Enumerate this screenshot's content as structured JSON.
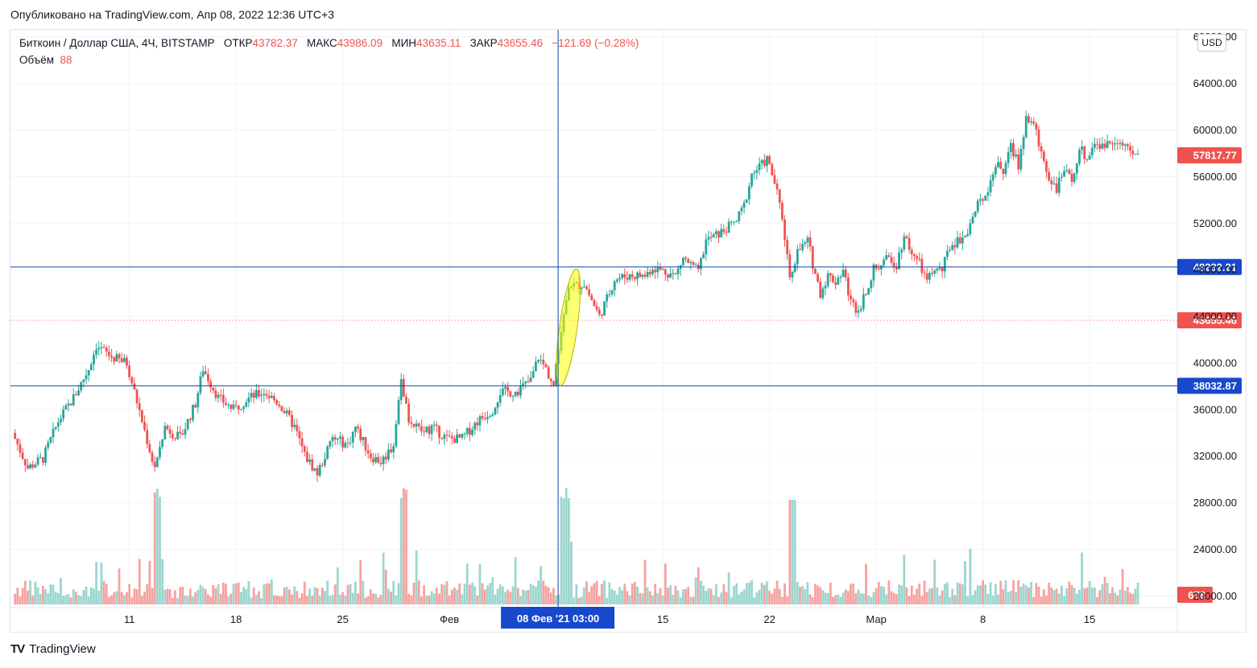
{
  "header": {
    "published": "Опубликовано на TradingView.com, Апр 08, 2022 12:36 UTC+3"
  },
  "legend": {
    "symbol": "Биткоин / Доллар США, 4Ч, BITSTAMP",
    "open_label": "ОТКР",
    "open": "43782.37",
    "high_label": "МАКС",
    "high": "43986.09",
    "low_label": "МИН",
    "low": "43635.11",
    "close_label": "ЗАКР",
    "close": "43655.46",
    "change": "−121.69 (−0.28%)",
    "volume_label": "Объём",
    "volume": "88"
  },
  "currency": "USD",
  "footer": {
    "logo": "TV",
    "brand": "TradingView"
  },
  "colors": {
    "up": "#26a69a",
    "down": "#ef5350",
    "line": "#0d47a1",
    "label_blue": "#1e53e5",
    "highlight": "#ffff00"
  },
  "chart_data": {
    "type": "candlestick",
    "y_ticks": [
      "68000.00",
      "64000.00",
      "60000.00",
      "56000.00",
      "52000.00",
      "48000.00",
      "44000.00",
      "40000.00",
      "36000.00",
      "32000.00",
      "28000.00",
      "24000.00",
      "20000.00"
    ],
    "y_tick_values": [
      68000,
      64000,
      60000,
      56000,
      52000,
      48000,
      44000,
      40000,
      36000,
      32000,
      28000,
      24000,
      20000
    ],
    "ylim": [
      19200,
      68600
    ],
    "x_ticks": [
      "11",
      "18",
      "25",
      "Фев",
      "15",
      "22",
      "Мар",
      "8",
      "15"
    ],
    "x_tick_days": [
      11,
      18,
      25,
      32,
      46,
      53,
      60,
      67,
      74
    ],
    "xlim_days": [
      3.2,
      79.7
    ],
    "horizontal_lines": [
      {
        "value": 48232.21,
        "label": "48232.21",
        "color": "#0d47a1"
      },
      {
        "value": 38032.87,
        "label": "38032.87",
        "color": "#0d47a1"
      }
    ],
    "last_price": {
      "value": 43655.46,
      "label": "43655.46"
    },
    "current_price": {
      "value": 57817.77,
      "label": "57817.77"
    },
    "volume_last": {
      "value": 678,
      "label": "678"
    },
    "crosshair": {
      "day": 39.13,
      "label": "08 Фев '21   03:00"
    },
    "highlight_ellipse": {
      "day_center": 39.8,
      "low": 38000,
      "high": 48100
    },
    "anchors": [
      [
        3.5,
        34000
      ],
      [
        4.5,
        31000
      ],
      [
        5.5,
        31800
      ],
      [
        6.5,
        35000
      ],
      [
        7.5,
        37000
      ],
      [
        8.5,
        39500
      ],
      [
        9,
        41500
      ],
      [
        10,
        40500
      ],
      [
        11,
        40000
      ],
      [
        12,
        35000
      ],
      [
        12.8,
        31000
      ],
      [
        13.5,
        34500
      ],
      [
        14.5,
        33500
      ],
      [
        15.5,
        36500
      ],
      [
        16,
        39500
      ],
      [
        17,
        37000
      ],
      [
        18,
        36000
      ],
      [
        19,
        37000
      ],
      [
        20,
        37500
      ],
      [
        21,
        36500
      ],
      [
        22,
        34500
      ],
      [
        22.7,
        32000
      ],
      [
        23.5,
        30500
      ],
      [
        24.5,
        33500
      ],
      [
        25.5,
        33000
      ],
      [
        26,
        34500
      ],
      [
        27,
        32000
      ],
      [
        27.7,
        31500
      ],
      [
        28.5,
        33000
      ],
      [
        29,
        38500
      ],
      [
        29.5,
        35000
      ],
      [
        30.5,
        34000
      ],
      [
        31,
        34500
      ],
      [
        32,
        33500
      ],
      [
        33,
        33500
      ],
      [
        34,
        35000
      ],
      [
        35,
        36000
      ],
      [
        35.5,
        37500
      ],
      [
        36.5,
        37500
      ],
      [
        37.5,
        38500
      ],
      [
        38,
        40500
      ],
      [
        38.5,
        39500
      ],
      [
        39,
        38000
      ],
      [
        39.7,
        44500
      ],
      [
        40,
        46500
      ],
      [
        41,
        46800
      ],
      [
        42,
        44000
      ],
      [
        42.5,
        45500
      ],
      [
        43,
        47200
      ],
      [
        44,
        47500
      ],
      [
        45,
        47500
      ],
      [
        45.5,
        48200
      ],
      [
        46,
        48000
      ],
      [
        47,
        47500
      ],
      [
        47.5,
        49000
      ],
      [
        48.5,
        47800
      ],
      [
        49,
        50500
      ],
      [
        50,
        51200
      ],
      [
        51,
        52200
      ],
      [
        51.5,
        53500
      ],
      [
        52,
        56200
      ],
      [
        52.5,
        56800
      ],
      [
        53,
        57500
      ],
      [
        53.5,
        55500
      ],
      [
        54,
        52500
      ],
      [
        54.5,
        47500
      ],
      [
        55,
        49500
      ],
      [
        55.7,
        50500
      ],
      [
        56,
        48500
      ],
      [
        56.5,
        46000
      ],
      [
        57,
        47500
      ],
      [
        57.5,
        47000
      ],
      [
        58,
        48000
      ],
      [
        58.5,
        45200
      ],
      [
        59,
        44500
      ],
      [
        60,
        48000
      ],
      [
        61,
        49000
      ],
      [
        61.5,
        48500
      ],
      [
        62,
        51000
      ],
      [
        62.5,
        49500
      ],
      [
        63,
        48500
      ],
      [
        63.5,
        47000
      ],
      [
        64,
        48000
      ],
      [
        64.5,
        48000
      ],
      [
        65,
        50000
      ],
      [
        66,
        51000
      ],
      [
        66.5,
        52500
      ],
      [
        67,
        54000
      ],
      [
        67.5,
        55000
      ],
      [
        68,
        57000
      ],
      [
        68.5,
        56500
      ],
      [
        69,
        58500
      ],
      [
        69.5,
        57000
      ],
      [
        70,
        61000
      ],
      [
        70.5,
        60500
      ],
      [
        71,
        58000
      ],
      [
        71.5,
        56000
      ],
      [
        72,
        55000
      ],
      [
        72.5,
        56500
      ],
      [
        73,
        55500
      ],
      [
        73.5,
        58500
      ],
      [
        74,
        57500
      ],
      [
        74.5,
        59000
      ],
      [
        75,
        58500
      ],
      [
        75.5,
        59000
      ],
      [
        76,
        59200
      ],
      [
        76.5,
        58500
      ],
      [
        77,
        57800
      ]
    ]
  }
}
